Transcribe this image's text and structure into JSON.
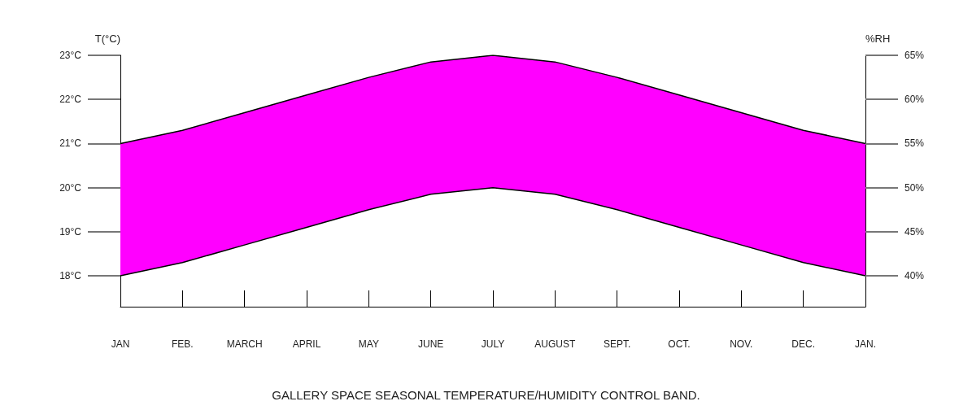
{
  "chart_data": {
    "type": "area",
    "title": "GALLERY SPACE SEASONAL TEMPERATURE/HUMIDITY CONTROL BAND.",
    "ylabel": "T(°C)",
    "y2label": "%RH",
    "categories": [
      "JAN",
      "FEB.",
      "MARCH",
      "APRIL",
      "MAY",
      "JUNE",
      "JULY",
      "AUGUST",
      "SEPT.",
      "OCT.",
      "NOV.",
      "DEC.",
      "JAN."
    ],
    "series": [
      {
        "type": "line",
        "color": "#000000",
        "values": [
          18,
          18.3,
          18.7,
          19.1,
          19.5,
          19.85,
          20,
          19.85,
          19.5,
          19.1,
          18.7,
          18.3,
          18
        ]
      },
      {
        "color": "#ff00ff",
        "values": [
          21,
          21.3,
          21.7,
          22.1,
          22.5,
          22.85,
          23,
          22.85,
          22.5,
          22.1,
          21.7,
          21.3,
          21
        ]
      }
    ],
    "ylim": [
      17.3,
      23
    ],
    "yticks": [
      {
        "value": 18,
        "label": "18°C"
      },
      {
        "value": 19,
        "label": "19°C"
      },
      {
        "value": 20,
        "label": "20°C"
      },
      {
        "value": 21,
        "label": "21°C"
      },
      {
        "value": 22,
        "label": "22°C"
      },
      {
        "value": 23,
        "label": "23°C"
      }
    ],
    "y2lim": [
      36.5,
      65
    ],
    "y2ticks": [
      {
        "value": 40,
        "label": "40%"
      },
      {
        "value": 45,
        "label": "45%"
      },
      {
        "value": 50,
        "label": "50%"
      },
      {
        "value": 55,
        "label": "55%"
      },
      {
        "value": 60,
        "label": "60%"
      },
      {
        "value": 65,
        "label": "65%"
      }
    ],
    "grid": false,
    "marker": "none",
    "line_style": "solid"
  }
}
